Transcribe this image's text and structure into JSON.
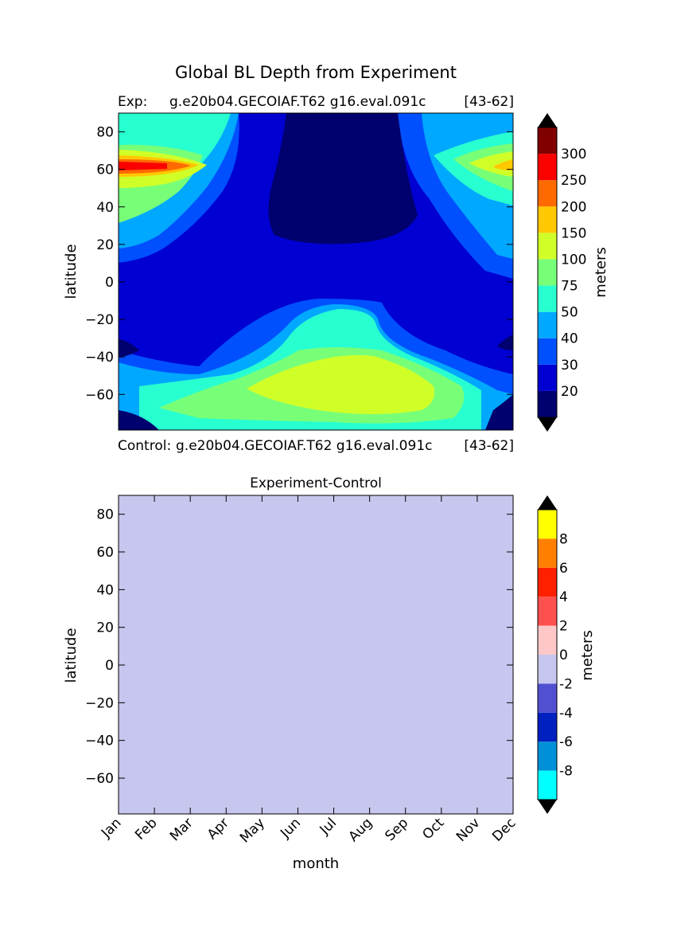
{
  "figure": {
    "suptitle": "Global BL Depth from Experiment"
  },
  "chart_data": [
    {
      "type": "heatmap",
      "panel": "top",
      "title_left": "Exp:",
      "title_center": "g.e20b04.GECOIAF.T62 g16.eval.091c",
      "title_right": "[43-62]",
      "bottom_left": "Control:",
      "bottom_center": "g.e20b04.GECOIAF.T62 g16.eval.091c",
      "bottom_right": "[43-62]",
      "ylabel": "latitude",
      "ylim": [
        -79,
        90
      ],
      "yticks": [
        "80",
        "60",
        "40",
        "20",
        "0",
        "−20",
        "−40",
        "−60"
      ],
      "yticks_values": [
        80,
        60,
        40,
        20,
        0,
        -20,
        -40,
        -60
      ],
      "colorbar": {
        "label": "meters",
        "tick_labels": [
          "20",
          "30",
          "40",
          "50",
          "75",
          "100",
          "150",
          "200",
          "250",
          "300"
        ],
        "colors": [
          "#00006e",
          "#0000d2",
          "#0050ff",
          "#00a8ff",
          "#28ffd0",
          "#78ff78",
          "#d0ff28",
          "#ffc800",
          "#ff6a00",
          "#fa0000",
          "#800000"
        ],
        "extend": "both"
      }
    },
    {
      "type": "heatmap",
      "panel": "bottom",
      "title": "Experiment-Control",
      "xlabel": "month",
      "ylabel": "latitude",
      "ylim": [
        -79,
        90
      ],
      "categories": [
        "Jan",
        "Feb",
        "Mar",
        "Apr",
        "May",
        "Jun",
        "Jul",
        "Aug",
        "Sep",
        "Oct",
        "Nov",
        "Dec"
      ],
      "yticks": [
        "80",
        "60",
        "40",
        "20",
        "0",
        "−20",
        "−40",
        "−60"
      ],
      "yticks_values": [
        80,
        60,
        40,
        20,
        0,
        -20,
        -40,
        -60
      ],
      "field_value_range": [
        -2,
        0
      ],
      "field_color": "#c6c6ee",
      "colorbar": {
        "label": "meters",
        "tick_labels": [
          "-8",
          "-6",
          "-4",
          "-2",
          "0",
          "2",
          "4",
          "6",
          "8"
        ],
        "colors": [
          "#00ffff",
          "#0090d8",
          "#0020c0",
          "#5050d0",
          "#c6c6ee",
          "#ffc8c8",
          "#ff5050",
          "#ff2000",
          "#ff8000",
          "#ffff00"
        ],
        "extend": "both"
      }
    }
  ]
}
